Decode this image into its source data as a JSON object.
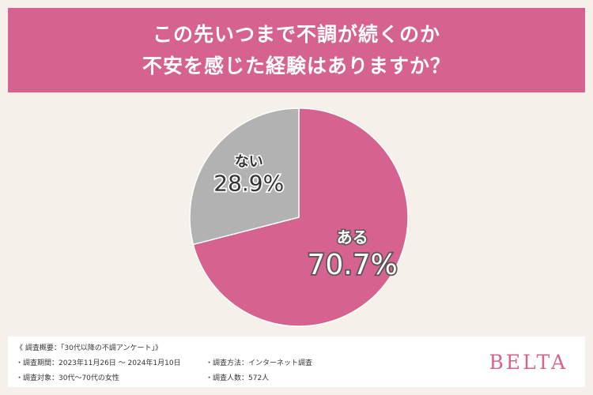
{
  "header": {
    "title_line1": "この先いつまで不調が続くのか",
    "title_line2": "不安を感じた経験はありますか？"
  },
  "chart_data": {
    "type": "pie",
    "slices": [
      {
        "label": "ある",
        "value": 70.7,
        "value_label": "70.7%",
        "color": "#d5628f"
      },
      {
        "label": "ない",
        "value": 28.9,
        "value_label": "28.9%",
        "color": "#b2b2b2"
      }
    ]
  },
  "survey": {
    "overview": "《 調査概要：「30代以降の不調アンケート」》",
    "period": "・調査期間：2023年11月26日 〜 2024年1月10日",
    "target": "・調査対象：30代〜70代の女性",
    "method": "・調査方法：インターネット調査",
    "count": "・調査人数：572人"
  },
  "brand": "BELTA"
}
